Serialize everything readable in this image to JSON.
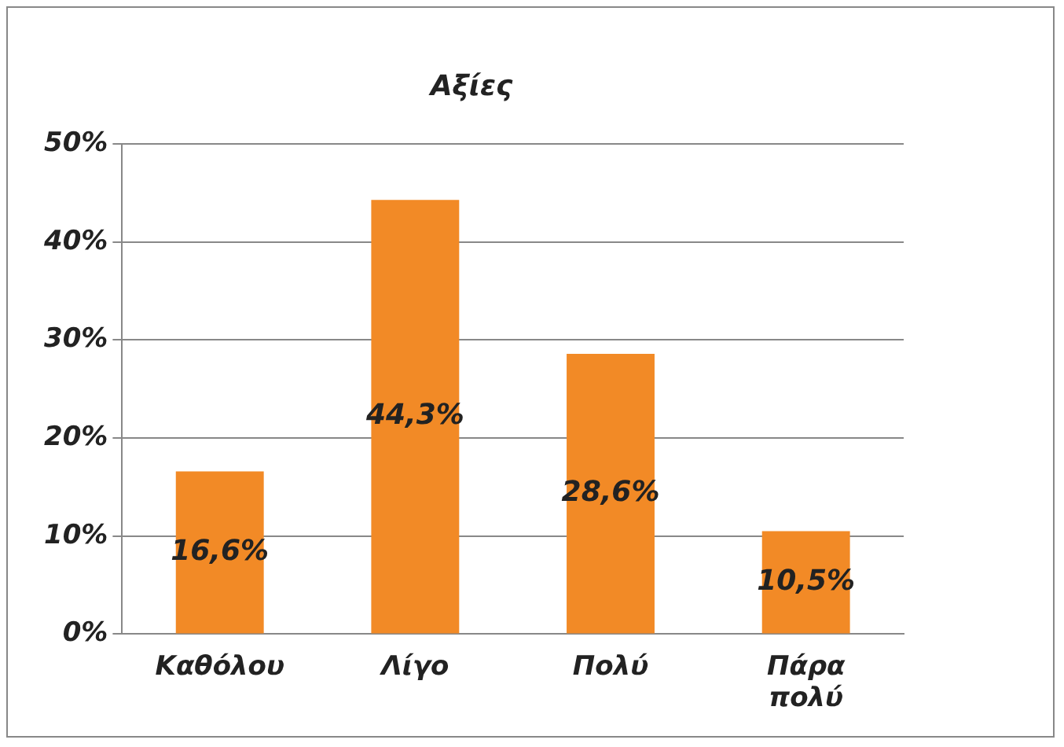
{
  "chart_data": {
    "type": "bar",
    "title": "Αξίες",
    "categories": [
      "Καθόλου",
      "Λίγο",
      "Πολύ",
      "Πάρα πολύ"
    ],
    "values": [
      16.6,
      44.3,
      28.6,
      10.5
    ],
    "value_labels": [
      "16,6%",
      "44,3%",
      "28,6%",
      "10,5%"
    ],
    "color": "#f28a26",
    "ylim": [
      0,
      50
    ],
    "yticks": [
      {
        "value": 0,
        "label": "0%"
      },
      {
        "value": 10,
        "label": "10%"
      },
      {
        "value": 20,
        "label": "20%"
      },
      {
        "value": 30,
        "label": "30%"
      },
      {
        "value": 40,
        "label": "40%"
      },
      {
        "value": 50,
        "label": "50%"
      }
    ],
    "grid": "y",
    "legend": false
  }
}
